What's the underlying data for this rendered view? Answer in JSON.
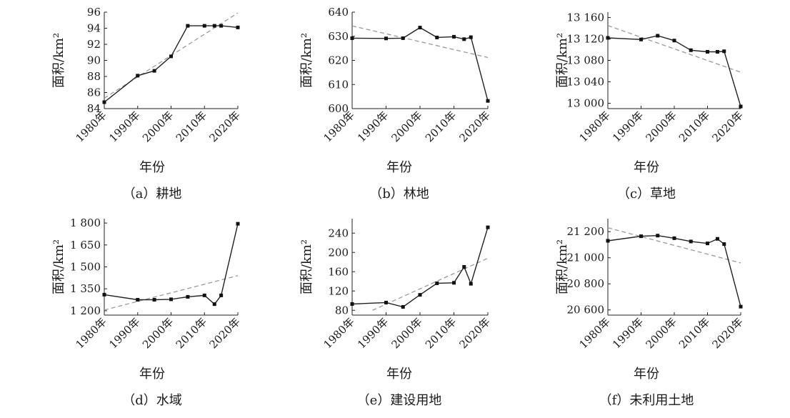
{
  "chart_data": [
    {
      "type": "line",
      "caption": "（a）耕地",
      "xlabel": "年份",
      "ylabel": "面积/km²",
      "xticks": [
        1980,
        1990,
        2000,
        2010,
        2020
      ],
      "xtick_labels": [
        "1980年",
        "1990年",
        "2000年",
        "2010年",
        "2020年"
      ],
      "xlim": [
        1980,
        2020
      ],
      "ylim": [
        84,
        96
      ],
      "yticks": [
        84,
        86,
        88,
        90,
        92,
        94,
        96
      ],
      "ytick_labels": [
        "84",
        "86",
        "88",
        "90",
        "92",
        "94",
        "96"
      ],
      "series": [
        {
          "x": [
            1980,
            1990,
            1995,
            2000,
            2005,
            2010,
            2013,
            2015,
            2020
          ],
          "y": [
            84.8,
            88.1,
            88.7,
            90.5,
            94.3,
            94.3,
            94.3,
            94.3,
            94.1
          ]
        }
      ],
      "trend": {
        "x": [
          1980,
          2020
        ],
        "y": [
          85.3,
          95.9
        ]
      }
    },
    {
      "type": "line",
      "caption": "（b）林地",
      "xlabel": "年份",
      "ylabel": "面积/km²",
      "xticks": [
        1980,
        1990,
        2000,
        2010,
        2020
      ],
      "xtick_labels": [
        "1980年",
        "1990年",
        "2000年",
        "2010年",
        "2020年"
      ],
      "xlim": [
        1980,
        2020
      ],
      "ylim": [
        600,
        640
      ],
      "yticks": [
        600,
        610,
        620,
        630,
        640
      ],
      "ytick_labels": [
        "600",
        "610",
        "620",
        "630",
        "640"
      ],
      "series": [
        {
          "x": [
            1980,
            1990,
            1995,
            2000,
            2005,
            2010,
            2013,
            2015,
            2020
          ],
          "y": [
            629.2,
            629.1,
            629.2,
            633.6,
            629.5,
            629.8,
            628.8,
            629.6,
            603.2
          ]
        }
      ],
      "trend": {
        "x": [
          1980,
          2020
        ],
        "y": [
          634.3,
          621.2
        ]
      }
    },
    {
      "type": "line",
      "caption": "（c）草地",
      "xlabel": "年份",
      "ylabel": "面积/km²",
      "xticks": [
        1980,
        1990,
        2000,
        2010,
        2020
      ],
      "xtick_labels": [
        "1980年",
        "1990年",
        "2000年",
        "2010年",
        "2020年"
      ],
      "xlim": [
        1980,
        2020
      ],
      "ylim": [
        12990,
        13170
      ],
      "yticks": [
        13000,
        13040,
        13080,
        13120,
        13160
      ],
      "ytick_labels": [
        "13 000",
        "13 040",
        "13 080",
        "13 120",
        "13 160"
      ],
      "series": [
        {
          "x": [
            1980,
            1990,
            1995,
            2000,
            2005,
            2010,
            2013,
            2015,
            2020
          ],
          "y": [
            13122,
            13119,
            13126,
            13117,
            13099,
            13096,
            13096,
            13097,
            12994
          ]
        }
      ],
      "trend": {
        "x": [
          1980,
          2020
        ],
        "y": [
          13145,
          13058
        ]
      }
    },
    {
      "type": "line",
      "caption": "（d）水域",
      "xlabel": "年份",
      "ylabel": "面积/km²",
      "xticks": [
        1980,
        1990,
        2000,
        2010,
        2020
      ],
      "xtick_labels": [
        "1980年",
        "1990年",
        "2000年",
        "2010年",
        "2020年"
      ],
      "xlim": [
        1980,
        2020
      ],
      "ylim": [
        1170,
        1830
      ],
      "yticks": [
        1200,
        1350,
        1500,
        1650,
        1800
      ],
      "ytick_labels": [
        "1 200",
        "1 350",
        "1 500",
        "1 650",
        "1 800"
      ],
      "series": [
        {
          "x": [
            1980,
            1990,
            1995,
            2000,
            2005,
            2010,
            2013,
            2015,
            2020
          ],
          "y": [
            1310,
            1275,
            1275,
            1278,
            1295,
            1305,
            1245,
            1305,
            1795
          ]
        }
      ],
      "trend": {
        "x": [
          1980,
          2020
        ],
        "y": [
          1205,
          1440
        ]
      }
    },
    {
      "type": "line",
      "caption": "（e）建设用地",
      "xlabel": "年份",
      "ylabel": "面积/km²",
      "xticks": [
        1980,
        1990,
        2000,
        2010,
        2020
      ],
      "xtick_labels": [
        "1980年",
        "1990年",
        "2000年",
        "2010年",
        "2020年"
      ],
      "xlim": [
        1980,
        2020
      ],
      "ylim": [
        70,
        270
      ],
      "yticks": [
        80,
        120,
        160,
        200,
        240
      ],
      "ytick_labels": [
        "80",
        "120",
        "160",
        "200",
        "240"
      ],
      "series": [
        {
          "x": [
            1980,
            1990,
            1995,
            2000,
            2005,
            2010,
            2013,
            2015,
            2020
          ],
          "y": [
            93,
            96,
            87,
            112,
            136,
            137,
            170,
            135,
            252
          ]
        }
      ],
      "trend": {
        "x": [
          1986,
          2020
        ],
        "y": [
          80,
          188
        ]
      }
    },
    {
      "type": "line",
      "caption": "（f）未利用土地",
      "xlabel": "年份",
      "ylabel": "面积/km²",
      "xticks": [
        1980,
        1990,
        2000,
        2010,
        2020
      ],
      "xtick_labels": [
        "1980年",
        "1990年",
        "2000年",
        "2010年",
        "2020年"
      ],
      "xlim": [
        1980,
        2020
      ],
      "ylim": [
        20560,
        21300
      ],
      "yticks": [
        20600,
        20800,
        21000,
        21200
      ],
      "ytick_labels": [
        "20 600",
        "20 800",
        "21 000",
        "21 200"
      ],
      "series": [
        {
          "x": [
            1980,
            1990,
            1995,
            2000,
            2005,
            2010,
            2013,
            2015,
            2020
          ],
          "y": [
            21130,
            21165,
            21170,
            21150,
            21125,
            21110,
            21145,
            21105,
            20625
          ]
        }
      ],
      "trend": {
        "x": [
          1980,
          2020
        ],
        "y": [
          21230,
          20960
        ]
      }
    }
  ]
}
